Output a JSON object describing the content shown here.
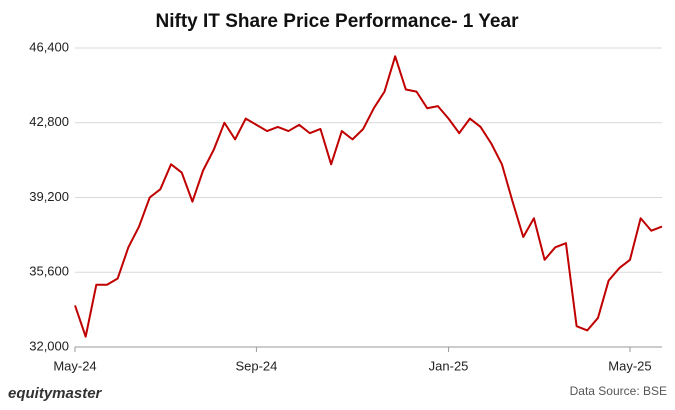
{
  "chart_data": {
    "type": "line",
    "title": "Nifty IT Share Price Performance- 1 Year",
    "categories": [
      "May-24",
      null,
      null,
      null,
      null,
      null,
      null,
      null,
      null,
      null,
      null,
      null,
      null,
      null,
      null,
      null,
      null,
      "Sep-24",
      null,
      null,
      null,
      null,
      null,
      null,
      null,
      null,
      null,
      null,
      null,
      null,
      null,
      null,
      null,
      null,
      null,
      "Jan-25",
      null,
      null,
      null,
      null,
      null,
      null,
      null,
      null,
      null,
      null,
      null,
      null,
      null,
      null,
      null,
      null,
      "May-25",
      null,
      null,
      null
    ],
    "series": [
      {
        "name": "Nifty IT",
        "color": "#c00000",
        "values": [
          34000,
          32500,
          35000,
          35000,
          35300,
          36800,
          37800,
          39200,
          39600,
          40800,
          40400,
          39000,
          40500,
          41500,
          42800,
          42000,
          43000,
          42700,
          42400,
          42600,
          42400,
          42700,
          42300,
          42500,
          40800,
          42400,
          42000,
          42500,
          43500,
          44300,
          46000,
          44400,
          44300,
          43500,
          43600,
          43000,
          42300,
          43000,
          42600,
          41800,
          40800,
          39000,
          37300,
          38200,
          36200,
          36800,
          37000,
          33000,
          32800,
          33400,
          35200,
          35800,
          36200,
          38200,
          37600,
          37800
        ]
      }
    ],
    "ylim": [
      32000,
      46400
    ],
    "yticks": [
      {
        "value": 32000,
        "label": "32,000"
      },
      {
        "value": 35600,
        "label": "35,600"
      },
      {
        "value": 39200,
        "label": "39,200"
      },
      {
        "value": 42800,
        "label": "42,800"
      },
      {
        "value": 46400,
        "label": "46,400"
      }
    ],
    "grid": true,
    "brand": "equitymaster",
    "source": "Data Source: BSE"
  }
}
